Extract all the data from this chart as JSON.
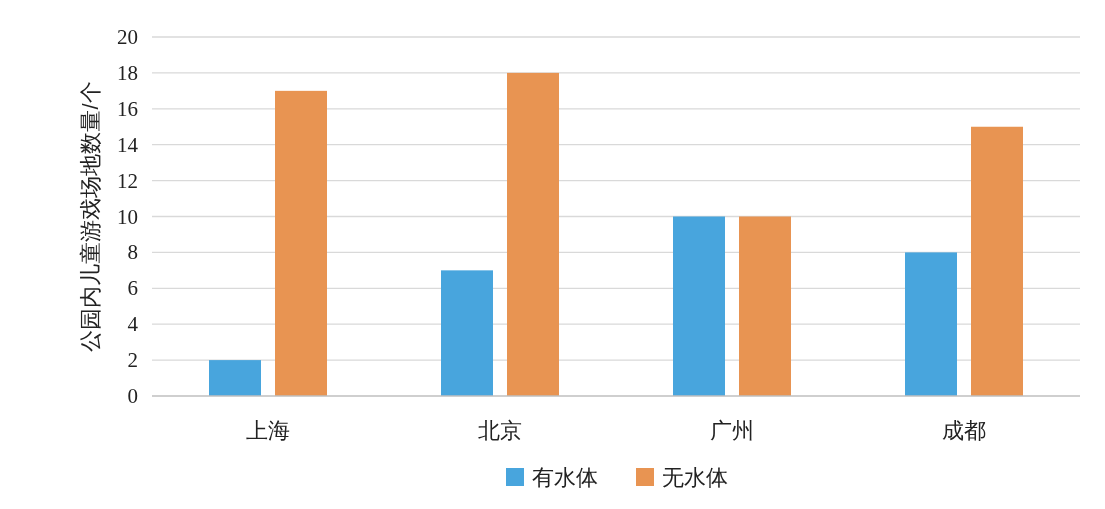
{
  "chart_data": {
    "type": "bar",
    "ylabel": "公园内儿童游戏场地数量/个",
    "categories": [
      "上海",
      "北京",
      "广州",
      "成都"
    ],
    "series": [
      {
        "name": "有水体",
        "color": "#48a5dd",
        "values": [
          2,
          7,
          10,
          8
        ]
      },
      {
        "name": "无水体",
        "color": "#e89452",
        "values": [
          17,
          18,
          10,
          15
        ]
      }
    ],
    "ylim": [
      0,
      20
    ],
    "yticks": [
      0,
      2,
      4,
      6,
      8,
      10,
      12,
      14,
      16,
      18,
      20
    ],
    "grid": "y",
    "legend": "bottom"
  }
}
